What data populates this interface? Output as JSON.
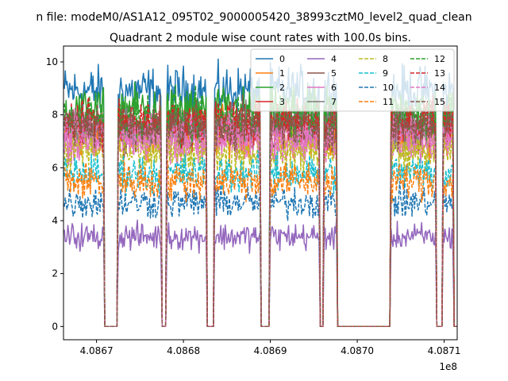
{
  "figure": {
    "suptitle": "n file: modeM0/AS1A12_095T02_9000005420_38993cztM0_level2_quad_clean"
  },
  "chart_data": {
    "type": "line",
    "title": "Quadrant 2 module wise count rates with 100.0s bins.",
    "xlabel": "",
    "ylabel": "",
    "x_offset_label": "1e8",
    "xlim": [
      408666200,
      408711500
    ],
    "ylim": [
      -0.5,
      10.6
    ],
    "x_tick_values": [
      408670000,
      408680000,
      408690000,
      408700000,
      408710000
    ],
    "x_tick_labels": [
      "4.0867",
      "4.0868",
      "4.0869",
      "4.0870",
      "4.0871"
    ],
    "y_tick_values": [
      0,
      2,
      4,
      6,
      8,
      10
    ],
    "y_tick_labels": [
      "0",
      "2",
      "4",
      "6",
      "8",
      "10"
    ],
    "grid": false,
    "legend_position": "upper-right",
    "legend_columns": 4,
    "data_segments": [
      [
        408666300,
        408670800
      ],
      [
        408672500,
        408677400
      ],
      [
        408678100,
        408682600
      ],
      [
        408683600,
        408688800
      ],
      [
        408690000,
        408695600
      ],
      [
        408696200,
        408697600
      ],
      [
        408703900,
        408709000
      ],
      [
        408709900,
        408711000
      ]
    ],
    "gap_level": 0,
    "series": [
      {
        "name": "0",
        "color": "#1f77b4",
        "dash": "solid",
        "mean": 8.9,
        "noise": 0.45
      },
      {
        "name": "1",
        "color": "#ff7f0e",
        "dash": "solid",
        "mean": 7.3,
        "noise": 0.45
      },
      {
        "name": "2",
        "color": "#2ca02c",
        "dash": "solid",
        "mean": 8.2,
        "noise": 0.4
      },
      {
        "name": "3",
        "color": "#d62728",
        "dash": "solid",
        "mean": 7.6,
        "noise": 0.4
      },
      {
        "name": "4",
        "color": "#9467bd",
        "dash": "solid",
        "mean": 3.4,
        "noise": 0.25
      },
      {
        "name": "5",
        "color": "#8c564b",
        "dash": "solid",
        "mean": 7.4,
        "noise": 0.4
      },
      {
        "name": "6",
        "color": "#e377c2",
        "dash": "solid",
        "mean": 7.0,
        "noise": 0.4
      },
      {
        "name": "7",
        "color": "#7f7f7f",
        "dash": "solid",
        "mean": 7.6,
        "noise": 0.4
      },
      {
        "name": "8",
        "color": "#bcbd22",
        "dash": "dashed",
        "mean": 6.6,
        "noise": 0.4
      },
      {
        "name": "9",
        "color": "#17becf",
        "dash": "dashed",
        "mean": 5.8,
        "noise": 0.35
      },
      {
        "name": "10",
        "color": "#1f77b4",
        "dash": "dashed",
        "mean": 4.7,
        "noise": 0.3
      },
      {
        "name": "11",
        "color": "#ff7f0e",
        "dash": "dashed",
        "mean": 5.5,
        "noise": 0.35
      },
      {
        "name": "12",
        "color": "#2ca02c",
        "dash": "dashed",
        "mean": 7.9,
        "noise": 0.45
      },
      {
        "name": "13",
        "color": "#d62728",
        "dash": "dashed",
        "mean": 7.7,
        "noise": 0.4
      },
      {
        "name": "14",
        "color": "#e377c2",
        "dash": "dashed",
        "mean": 7.2,
        "noise": 0.4
      },
      {
        "name": "15",
        "color": "#8c564b",
        "dash": "dashed",
        "mean": 7.6,
        "noise": 0.4
      }
    ]
  }
}
